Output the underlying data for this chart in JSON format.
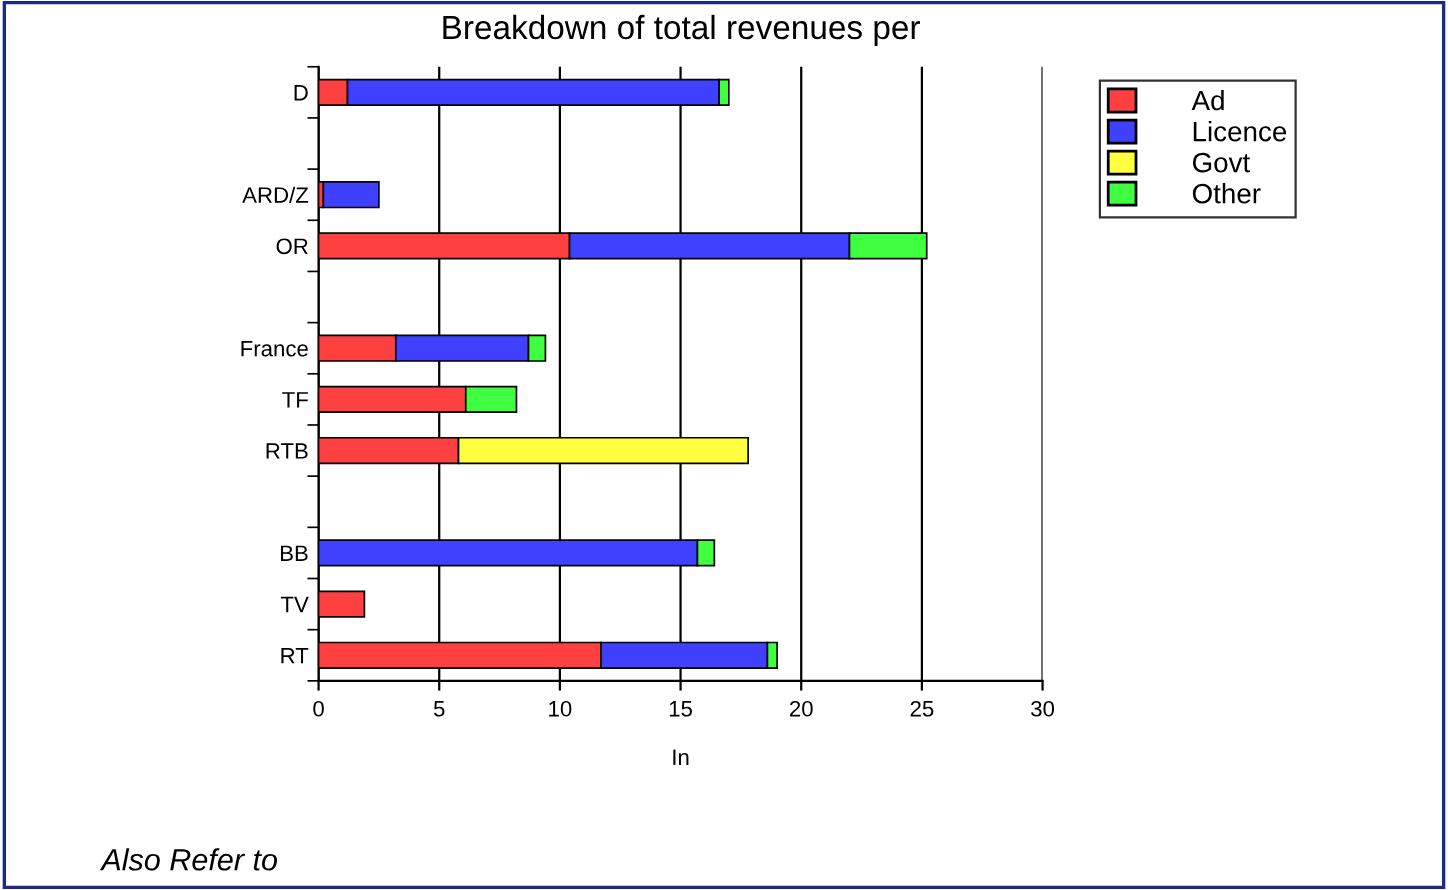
{
  "chart_data": {
    "type": "bar",
    "orientation": "horizontal",
    "stacked": true,
    "title": "Breakdown of total revenues per",
    "xlabel": "In",
    "categories": [
      "D",
      null,
      "ARD/Z",
      "OR",
      null,
      "France",
      "TF",
      "RTB",
      null,
      "BB",
      "TV",
      "RT"
    ],
    "series": [
      {
        "name": "Ad",
        "color": "#ff4040",
        "values": [
          1.2,
          null,
          0.2,
          10.4,
          null,
          3.2,
          6.1,
          5.8,
          null,
          null,
          1.9,
          11.7
        ]
      },
      {
        "name": "Licence",
        "color": "#4040ff",
        "values": [
          15.4,
          null,
          2.3,
          11.6,
          null,
          5.5,
          null,
          null,
          null,
          15.7,
          null,
          6.9
        ]
      },
      {
        "name": "Govt",
        "color": "#ffff40",
        "values": [
          null,
          null,
          null,
          null,
          null,
          null,
          null,
          12.0,
          null,
          null,
          null,
          null
        ]
      },
      {
        "name": "Other",
        "color": "#40ff40",
        "values": [
          0.4,
          null,
          null,
          3.2,
          null,
          0.7,
          2.1,
          null,
          null,
          0.7,
          null,
          0.4
        ]
      }
    ],
    "xlim": [
      0,
      30
    ],
    "xticks": [
      0,
      5,
      10,
      15,
      20,
      25,
      30
    ],
    "grid": "x",
    "legend": "top right",
    "annotations": [
      "Also Refer to"
    ]
  }
}
